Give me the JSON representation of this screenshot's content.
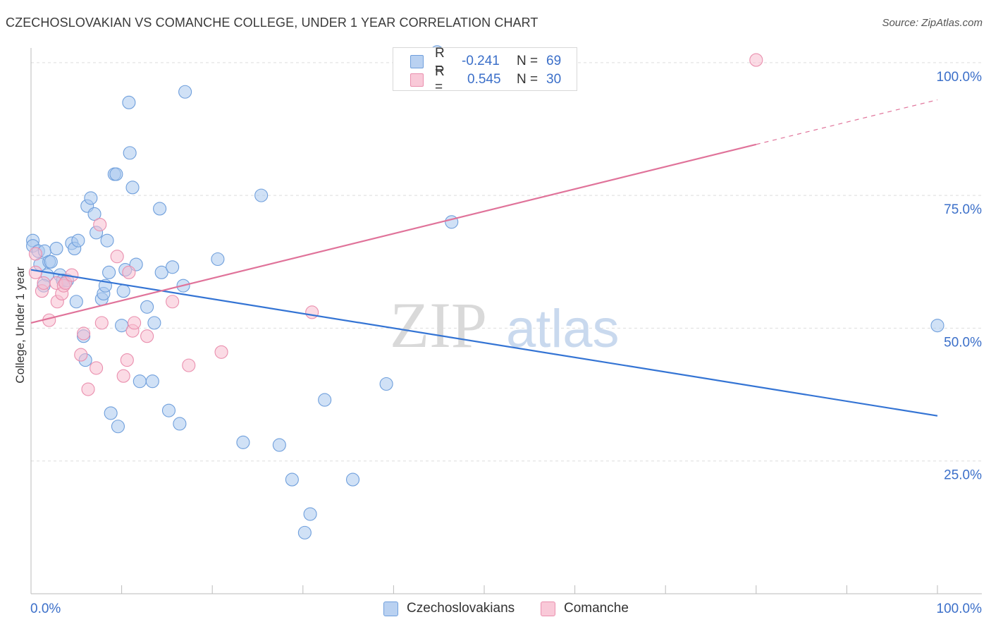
{
  "header": {
    "title": "CZECHOSLOVAKIAN VS COMANCHE COLLEGE, UNDER 1 YEAR CORRELATION CHART",
    "source": "Source: ZipAtlas.com"
  },
  "watermark": {
    "part1": "ZIP",
    "part2": "atlas"
  },
  "legend_top": {
    "rows": [
      {
        "r_label": "R =",
        "r_value": "-0.241",
        "n_label": "N =",
        "n_value": "69"
      },
      {
        "r_label": "R =",
        "r_value": "0.545",
        "n_label": "N =",
        "n_value": "30"
      }
    ]
  },
  "legend_bottom": {
    "series1": "Czechoslovakians",
    "series2": "Comanche"
  },
  "colors": {
    "blue_fill": "#a9c8ee",
    "blue_stroke": "#6f9fdc",
    "blue_line": "#3474d4",
    "pink_fill": "#f7bdd0",
    "pink_stroke": "#ea8fae",
    "pink_line": "#e0739a",
    "tick_label": "#3b6fc9",
    "grid": "#dddddd"
  },
  "chart_data": {
    "type": "scatter",
    "title": "CZECHOSLOVAKIAN VS COMANCHE COLLEGE, UNDER 1 YEAR CORRELATION CHART",
    "xlabel": "",
    "ylabel": "College, Under 1 year",
    "xlim": [
      0,
      100
    ],
    "ylim": [
      0,
      102.5
    ],
    "x_tick_labels": [
      "0.0%",
      "100.0%"
    ],
    "y_ticks": [
      {
        "value": 25,
        "label": "25.0%"
      },
      {
        "value": 50,
        "label": "50.0%"
      },
      {
        "value": 75,
        "label": "75.0%"
      },
      {
        "value": 100,
        "label": "100.0%"
      }
    ],
    "series": [
      {
        "name": "Czechoslovakians",
        "R": -0.241,
        "N": 69,
        "trend": {
          "x0": 0,
          "y0": 61,
          "x1": 100,
          "y1": 33.5,
          "solid_until": 100
        },
        "points": [
          [
            0.2,
            66.5
          ],
          [
            0.2,
            65.5
          ],
          [
            0.8,
            64.5
          ],
          [
            1.0,
            62
          ],
          [
            1.5,
            64.5
          ],
          [
            1.8,
            60
          ],
          [
            2.0,
            62.5
          ],
          [
            2.2,
            62.5
          ],
          [
            2.8,
            65
          ],
          [
            3.2,
            60
          ],
          [
            3.5,
            59
          ],
          [
            3.8,
            58.5
          ],
          [
            4.0,
            59
          ],
          [
            4.5,
            66
          ],
          [
            4.8,
            65
          ],
          [
            5.2,
            66.5
          ],
          [
            1.4,
            58
          ],
          [
            5.0,
            55
          ],
          [
            5.8,
            48.5
          ],
          [
            6.0,
            44
          ],
          [
            6.2,
            73
          ],
          [
            6.6,
            74.5
          ],
          [
            7.0,
            71.5
          ],
          [
            7.2,
            68
          ],
          [
            7.8,
            55.5
          ],
          [
            8.0,
            56.5
          ],
          [
            8.2,
            58
          ],
          [
            8.4,
            66.5
          ],
          [
            8.6,
            60.5
          ],
          [
            8.8,
            34
          ],
          [
            9.2,
            79
          ],
          [
            9.4,
            79
          ],
          [
            9.6,
            31.5
          ],
          [
            10.0,
            50.5
          ],
          [
            10.2,
            57
          ],
          [
            10.4,
            61
          ],
          [
            10.8,
            92.5
          ],
          [
            10.9,
            83
          ],
          [
            11.2,
            76.5
          ],
          [
            11.6,
            62
          ],
          [
            12.0,
            40
          ],
          [
            12.8,
            54
          ],
          [
            13.4,
            40
          ],
          [
            13.6,
            51
          ],
          [
            14.2,
            72.5
          ],
          [
            14.4,
            60.5
          ],
          [
            15.2,
            34.5
          ],
          [
            15.6,
            61.5
          ],
          [
            16.4,
            32
          ],
          [
            16.8,
            58
          ],
          [
            17.0,
            94.5
          ],
          [
            20.6,
            63
          ],
          [
            23.4,
            28.5
          ],
          [
            25.4,
            75
          ],
          [
            27.4,
            28
          ],
          [
            28.8,
            21.5
          ],
          [
            30.2,
            11.5
          ],
          [
            30.8,
            15
          ],
          [
            32.4,
            36.5
          ],
          [
            35.5,
            21.5
          ],
          [
            39.2,
            39.5
          ],
          [
            44.8,
            102
          ],
          [
            46.4,
            70
          ],
          [
            100,
            50.5
          ]
        ]
      },
      {
        "name": "Comanche",
        "R": 0.545,
        "N": 30,
        "trend": {
          "x0": 0,
          "y0": 51,
          "x1": 100,
          "y1": 93,
          "solid_until": 80
        },
        "points": [
          [
            0.5,
            64
          ],
          [
            0.5,
            60.5
          ],
          [
            1.2,
            57
          ],
          [
            1.4,
            58.5
          ],
          [
            2.0,
            51.5
          ],
          [
            2.8,
            58.5
          ],
          [
            2.9,
            55
          ],
          [
            3.4,
            56.5
          ],
          [
            3.6,
            58
          ],
          [
            3.8,
            58.5
          ],
          [
            4.5,
            60
          ],
          [
            5.5,
            45
          ],
          [
            5.8,
            49
          ],
          [
            6.3,
            38.5
          ],
          [
            7.2,
            42.5
          ],
          [
            7.6,
            69.5
          ],
          [
            7.8,
            51
          ],
          [
            9.5,
            63.5
          ],
          [
            10.2,
            41
          ],
          [
            10.6,
            44
          ],
          [
            10.8,
            60.5
          ],
          [
            11.2,
            49.5
          ],
          [
            11.4,
            51
          ],
          [
            12.8,
            48.5
          ],
          [
            15.6,
            55
          ],
          [
            17.4,
            43
          ],
          [
            21.0,
            45.5
          ],
          [
            31.0,
            53
          ],
          [
            80.0,
            100.5
          ]
        ]
      }
    ]
  }
}
